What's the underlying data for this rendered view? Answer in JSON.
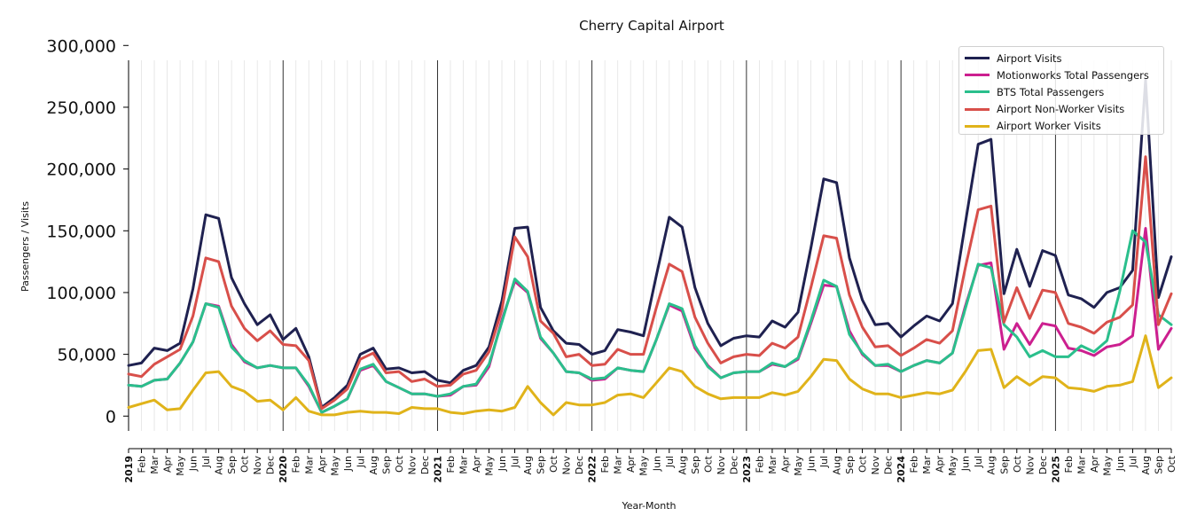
{
  "chart_data": {
    "type": "line",
    "title": "Cherry Capital Airport",
    "xlabel": "Year-Month",
    "ylabel": "Passengers / Visits",
    "ylim": [
      -12000,
      288000
    ],
    "y_ticks": [
      0,
      50000,
      100000,
      150000,
      200000,
      250000,
      300000
    ],
    "y_tick_labels": [
      "0",
      "50,000",
      "100,000",
      "150,000",
      "200,000",
      "250,000",
      "300,000"
    ],
    "legend_position": "top-right",
    "month_labels": [
      "2019",
      "Feb",
      "Mar",
      "Apr",
      "May",
      "Jun",
      "Jul",
      "Aug",
      "Sep",
      "Oct",
      "Nov",
      "Dec",
      "2020",
      "Feb",
      "Mar",
      "Apr",
      "May",
      "Jun",
      "Jul",
      "Aug",
      "Sep",
      "Oct",
      "Nov",
      "Dec",
      "2021",
      "Feb",
      "Mar",
      "Apr",
      "May",
      "Jun",
      "Jul",
      "Aug",
      "Sep",
      "Oct",
      "Nov",
      "Dec",
      "2022",
      "Feb",
      "Mar",
      "Apr",
      "May",
      "Jun",
      "Jul",
      "Aug",
      "Sep",
      "Oct",
      "Nov",
      "Dec",
      "2023",
      "Feb",
      "Mar",
      "Apr",
      "May",
      "Jun",
      "Jul",
      "Aug",
      "Sep",
      "Oct",
      "Nov",
      "Dec",
      "2024",
      "Feb",
      "Mar",
      "Apr",
      "May",
      "Jun",
      "Jul",
      "Aug",
      "Sep",
      "Oct",
      "Nov",
      "Dec",
      "2025",
      "Feb",
      "Mar",
      "Apr",
      "May",
      "Jun",
      "Jul",
      "Aug",
      "Sep",
      "Oct"
    ],
    "year_start_indices": [
      0,
      12,
      24,
      36,
      48,
      60,
      72
    ],
    "series": [
      {
        "name": "Airport Visits",
        "color": "#1f2150",
        "values": [
          41000,
          43000,
          55000,
          53000,
          59000,
          103000,
          163000,
          160000,
          112000,
          91000,
          74000,
          82000,
          62000,
          71000,
          48000,
          7000,
          15000,
          25000,
          50000,
          55000,
          38000,
          39000,
          35000,
          36000,
          29000,
          27000,
          37000,
          41000,
          56000,
          93000,
          152000,
          153000,
          88000,
          69000,
          59000,
          58000,
          50000,
          53000,
          70000,
          68000,
          65000,
          114000,
          161000,
          153000,
          104000,
          75000,
          57000,
          63000,
          65000,
          64000,
          77000,
          72000,
          84000,
          136000,
          192000,
          189000,
          128000,
          94000,
          74000,
          75000,
          64000,
          73000,
          81000,
          77000,
          91000,
          156000,
          220000,
          224000,
          99000,
          135000,
          105000,
          134000,
          130000,
          98000,
          95000,
          88000,
          100000,
          104000,
          118000,
          272000,
          96000,
          129000
        ]
      },
      {
        "name": "Motionworks Total Passengers",
        "color": "#cc1f8f",
        "values": [
          25000,
          24000,
          29000,
          30000,
          43000,
          60000,
          91000,
          89000,
          58000,
          44000,
          39000,
          41000,
          39000,
          39000,
          24000,
          3000,
          8000,
          14000,
          37000,
          41000,
          28000,
          23000,
          18000,
          18000,
          16000,
          17000,
          24000,
          25000,
          40000,
          78000,
          109000,
          100000,
          63000,
          51000,
          36000,
          35000,
          29000,
          30000,
          39000,
          37000,
          36000,
          62000,
          90000,
          85000,
          55000,
          41000,
          31000,
          35000,
          36000,
          36000,
          42000,
          40000,
          46000,
          75000,
          106000,
          105000,
          69000,
          50000,
          41000,
          41000,
          36000,
          41000,
          45000,
          43000,
          51000,
          89000,
          122000,
          124000,
          54000,
          75000,
          58000,
          75000,
          73000,
          55000,
          53000,
          49000,
          56000,
          58000,
          65000,
          152000,
          54000,
          71000
        ]
      },
      {
        "name": "BTS Total Passengers",
        "color": "#2abf8c",
        "values": [
          25000,
          24000,
          29000,
          30000,
          43000,
          60000,
          91000,
          88000,
          56000,
          45000,
          39000,
          41000,
          39000,
          39000,
          25000,
          3000,
          8000,
          14000,
          38000,
          42000,
          28000,
          23000,
          18000,
          18000,
          16000,
          18000,
          24000,
          26000,
          42000,
          76000,
          111000,
          101000,
          64000,
          51000,
          36000,
          35000,
          30000,
          31000,
          39000,
          37000,
          36000,
          62000,
          91000,
          87000,
          57000,
          40000,
          31000,
          35000,
          36000,
          36000,
          43000,
          40000,
          47000,
          77000,
          110000,
          105000,
          66000,
          51000,
          41000,
          42000,
          36000,
          41000,
          45000,
          43000,
          51000,
          87000,
          123000,
          120000,
          74000,
          64000,
          48000,
          53000,
          48000,
          48000,
          57000,
          52000,
          61000,
          101000,
          150000,
          141000,
          82000,
          74000
        ]
      },
      {
        "name": "Airport Non-Worker Visits",
        "color": "#d84f4a",
        "values": [
          34000,
          32000,
          42000,
          48000,
          54000,
          81000,
          128000,
          125000,
          89000,
          71000,
          61000,
          69000,
          58000,
          57000,
          45000,
          6000,
          13000,
          22000,
          46000,
          51000,
          35000,
          36000,
          28000,
          30000,
          24000,
          25000,
          34000,
          37000,
          52000,
          86000,
          145000,
          129000,
          77000,
          67000,
          48000,
          50000,
          41000,
          42000,
          54000,
          50000,
          50000,
          88000,
          123000,
          117000,
          80000,
          59000,
          43000,
          48000,
          50000,
          49000,
          59000,
          55000,
          64000,
          104000,
          146000,
          144000,
          98000,
          72000,
          56000,
          57000,
          49000,
          55000,
          62000,
          59000,
          69000,
          120000,
          167000,
          170000,
          76000,
          104000,
          79000,
          102000,
          100000,
          75000,
          72000,
          67000,
          76000,
          80000,
          90000,
          210000,
          74000,
          99000
        ]
      },
      {
        "name": "Airport Worker Visits",
        "color": "#e0b31a",
        "values": [
          7000,
          10000,
          13000,
          5000,
          6000,
          21000,
          35000,
          36000,
          24000,
          20000,
          12000,
          13000,
          5000,
          15000,
          4000,
          1000,
          1000,
          3000,
          4000,
          3000,
          3000,
          2000,
          7000,
          6000,
          6000,
          3000,
          2000,
          4000,
          5000,
          4000,
          7000,
          24000,
          11000,
          1000,
          11000,
          9000,
          9000,
          11000,
          17000,
          18000,
          15000,
          27000,
          39000,
          36000,
          24000,
          18000,
          14000,
          15000,
          15000,
          15000,
          19000,
          17000,
          20000,
          32000,
          46000,
          45000,
          30000,
          22000,
          18000,
          18000,
          15000,
          17000,
          19000,
          18000,
          21000,
          36000,
          53000,
          54000,
          23000,
          32000,
          25000,
          32000,
          31000,
          23000,
          22000,
          20000,
          24000,
          25000,
          28000,
          65000,
          23000,
          31000
        ]
      }
    ]
  }
}
